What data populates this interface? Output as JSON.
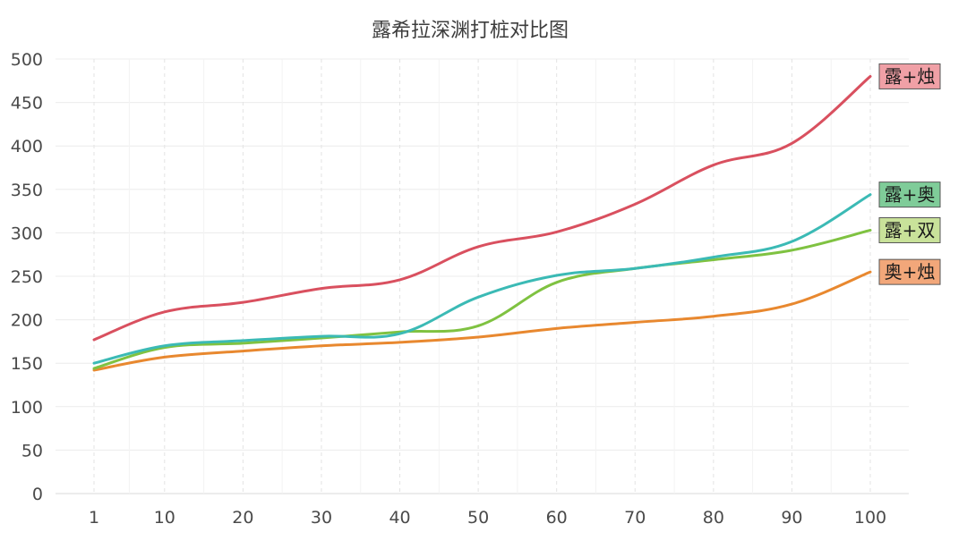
{
  "chart_data": {
    "type": "line",
    "title": "露希拉深渊打桩对比图",
    "xlabel": "",
    "ylabel": "",
    "x": [
      1,
      10,
      20,
      30,
      40,
      50,
      60,
      70,
      80,
      90,
      100
    ],
    "x_tick_labels": [
      "1",
      "10",
      "20",
      "30",
      "40",
      "50",
      "60",
      "70",
      "80",
      "90",
      "100"
    ],
    "ylim": [
      0,
      500
    ],
    "y_ticks": [
      0,
      50,
      100,
      150,
      200,
      250,
      300,
      350,
      400,
      450,
      500
    ],
    "grid": true,
    "legend_position": "right-end-labels",
    "series": [
      {
        "name": "露+烛",
        "color": "#d9505f",
        "label_bg": "#f0a0a6",
        "values": [
          177,
          209,
          220,
          236,
          246,
          284,
          301,
          333,
          378,
          403,
          480
        ]
      },
      {
        "name": "露+奥",
        "color": "#3bbab5",
        "label_bg": "#7fcc99",
        "values": [
          150,
          170,
          176,
          181,
          184,
          226,
          251,
          259,
          272,
          290,
          344
        ]
      },
      {
        "name": "露+双",
        "color": "#7fc241",
        "label_bg": "#c9e29a",
        "values": [
          144,
          168,
          173,
          179,
          186,
          193,
          243,
          259,
          269,
          280,
          303
        ]
      },
      {
        "name": "奥+烛",
        "color": "#e8882f",
        "label_bg": "#f2a77a",
        "values": [
          142,
          157,
          164,
          170,
          174,
          180,
          190,
          197,
          204,
          218,
          255
        ]
      }
    ]
  }
}
